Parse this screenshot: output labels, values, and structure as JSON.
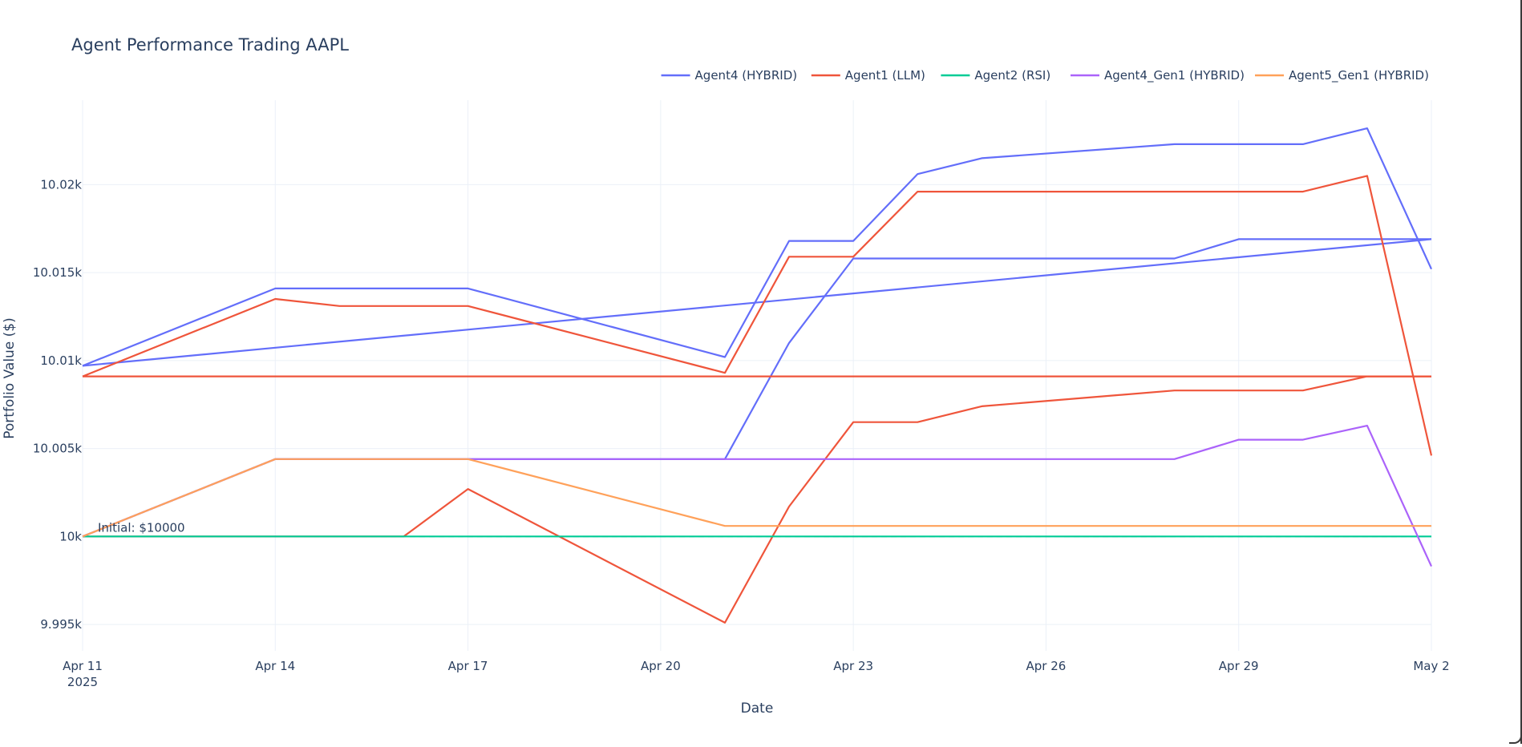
{
  "chart_data": {
    "type": "line",
    "title": "Agent Performance Trading AAPL",
    "xlabel": "Date",
    "ylabel": "Portfolio Value ($)",
    "x_range": [
      "2025-04-11",
      "2025-05-02"
    ],
    "ylim": [
      9993.5,
      10024.8
    ],
    "x_ticks": [
      {
        "date": "2025-04-11",
        "label": "Apr 11",
        "sublabel": "2025"
      },
      {
        "date": "2025-04-14",
        "label": "Apr 14",
        "sublabel": ""
      },
      {
        "date": "2025-04-17",
        "label": "Apr 17",
        "sublabel": ""
      },
      {
        "date": "2025-04-20",
        "label": "Apr 20",
        "sublabel": ""
      },
      {
        "date": "2025-04-23",
        "label": "Apr 23",
        "sublabel": ""
      },
      {
        "date": "2025-04-26",
        "label": "Apr 26",
        "sublabel": ""
      },
      {
        "date": "2025-04-29",
        "label": "Apr 29",
        "sublabel": ""
      },
      {
        "date": "2025-05-02",
        "label": "May 2",
        "sublabel": ""
      }
    ],
    "y_ticks": [
      {
        "value": 9995,
        "label": "9.995k"
      },
      {
        "value": 10000,
        "label": "10k"
      },
      {
        "value": 10005,
        "label": "10.005k"
      },
      {
        "value": 10010,
        "label": "10.01k"
      },
      {
        "value": 10015,
        "label": "10.015k"
      },
      {
        "value": 10020,
        "label": "10.02k"
      }
    ],
    "grid": true,
    "legend_position": "top-right, horizontal",
    "annotations": [
      {
        "text": "Initial: $10000",
        "x": "2025-04-11",
        "y": 10000
      }
    ],
    "reference_line": {
      "y": 10000,
      "style": "dashed",
      "color": "#888888"
    },
    "series": [
      {
        "name": "Agent4 (HYBRID)",
        "color": "#636efa",
        "legend": true,
        "points": [
          {
            "x": "2025-04-11",
            "y": 10009.7
          },
          {
            "x": "2025-04-14",
            "y": 10014.1
          },
          {
            "x": "2025-04-17",
            "y": 10014.1
          },
          {
            "x": "2025-04-21",
            "y": 10010.2
          },
          {
            "x": "2025-04-22",
            "y": 10016.8
          },
          {
            "x": "2025-04-23",
            "y": 10016.8
          },
          {
            "x": "2025-04-24",
            "y": 10020.6
          },
          {
            "x": "2025-04-25",
            "y": 10021.5
          },
          {
            "x": "2025-04-28",
            "y": 10022.3
          },
          {
            "x": "2025-04-29",
            "y": 10022.3
          },
          {
            "x": "2025-04-30",
            "y": 10022.3
          },
          {
            "x": "2025-05-01",
            "y": 10023.2
          },
          {
            "x": "2025-05-02",
            "y": 10015.2
          }
        ]
      },
      {
        "name": "Agent4 (HYBRID)",
        "color": "#636efa",
        "legend": false,
        "points": [
          {
            "x": "2025-04-11",
            "y": 10009.7
          },
          {
            "x": "2025-05-02",
            "y": 10016.9
          }
        ]
      },
      {
        "name": "Agent4 (HYBRID)",
        "color": "#636efa",
        "legend": false,
        "points": [
          {
            "x": "2025-04-11",
            "y": 10000.0
          },
          {
            "x": "2025-04-14",
            "y": 10004.4
          },
          {
            "x": "2025-04-17",
            "y": 10004.4
          },
          {
            "x": "2025-04-21",
            "y": 10004.4
          },
          {
            "x": "2025-04-22",
            "y": 10011.0
          },
          {
            "x": "2025-04-23",
            "y": 10015.8
          },
          {
            "x": "2025-04-24",
            "y": 10015.8
          },
          {
            "x": "2025-04-28",
            "y": 10015.8
          },
          {
            "x": "2025-04-29",
            "y": 10016.9
          },
          {
            "x": "2025-05-01",
            "y": 10016.9
          },
          {
            "x": "2025-05-02",
            "y": 10016.9
          }
        ]
      },
      {
        "name": "Agent1 (LLM)",
        "color": "#ef553b",
        "legend": true,
        "points": [
          {
            "x": "2025-04-11",
            "y": 10009.1
          },
          {
            "x": "2025-04-14",
            "y": 10013.5
          },
          {
            "x": "2025-04-15",
            "y": 10013.1
          },
          {
            "x": "2025-04-17",
            "y": 10013.1
          },
          {
            "x": "2025-04-21",
            "y": 10009.3
          },
          {
            "x": "2025-04-22",
            "y": 10015.9
          },
          {
            "x": "2025-04-23",
            "y": 10015.9
          },
          {
            "x": "2025-04-24",
            "y": 10019.6
          },
          {
            "x": "2025-04-28",
            "y": 10019.6
          },
          {
            "x": "2025-04-29",
            "y": 10019.6
          },
          {
            "x": "2025-04-30",
            "y": 10019.6
          },
          {
            "x": "2025-05-01",
            "y": 10020.5
          },
          {
            "x": "2025-05-02",
            "y": 10004.6
          }
        ]
      },
      {
        "name": "Agent1 (LLM)",
        "color": "#ef553b",
        "legend": false,
        "points": [
          {
            "x": "2025-04-11",
            "y": 10009.1
          },
          {
            "x": "2025-05-02",
            "y": 10009.1
          }
        ]
      },
      {
        "name": "Agent1 (LLM)",
        "color": "#ef553b",
        "legend": false,
        "points": [
          {
            "x": "2025-04-11",
            "y": 10000.0
          },
          {
            "x": "2025-04-16",
            "y": 10000.0
          },
          {
            "x": "2025-04-17",
            "y": 10002.7
          },
          {
            "x": "2025-04-21",
            "y": 9995.1
          },
          {
            "x": "2025-04-22",
            "y": 10001.7
          },
          {
            "x": "2025-04-23",
            "y": 10006.5
          },
          {
            "x": "2025-04-24",
            "y": 10006.5
          },
          {
            "x": "2025-04-25",
            "y": 10007.4
          },
          {
            "x": "2025-04-28",
            "y": 10008.3
          },
          {
            "x": "2025-04-29",
            "y": 10008.3
          },
          {
            "x": "2025-04-30",
            "y": 10008.3
          },
          {
            "x": "2025-05-01",
            "y": 10009.1
          },
          {
            "x": "2025-05-02",
            "y": 10009.1
          }
        ]
      },
      {
        "name": "Agent2 (RSI)",
        "color": "#00cc96",
        "legend": true,
        "points": [
          {
            "x": "2025-04-11",
            "y": 10000.0
          },
          {
            "x": "2025-05-02",
            "y": 10000.0
          }
        ]
      },
      {
        "name": "Agent4_Gen1 (HYBRID)",
        "color": "#ab63fa",
        "legend": true,
        "points": [
          {
            "x": "2025-04-11",
            "y": 10000.0
          },
          {
            "x": "2025-04-14",
            "y": 10004.4
          },
          {
            "x": "2025-04-17",
            "y": 10004.4
          },
          {
            "x": "2025-04-21",
            "y": 10004.4
          },
          {
            "x": "2025-04-28",
            "y": 10004.4
          },
          {
            "x": "2025-04-29",
            "y": 10005.5
          },
          {
            "x": "2025-04-30",
            "y": 10005.5
          },
          {
            "x": "2025-05-01",
            "y": 10006.3
          },
          {
            "x": "2025-05-02",
            "y": 9998.3
          }
        ]
      },
      {
        "name": "Agent5_Gen1 (HYBRID)",
        "color": "#ffa15a",
        "legend": true,
        "points": [
          {
            "x": "2025-04-11",
            "y": 10000.0
          },
          {
            "x": "2025-04-14",
            "y": 10004.4
          },
          {
            "x": "2025-04-17",
            "y": 10004.4
          },
          {
            "x": "2025-04-21",
            "y": 10000.6
          },
          {
            "x": "2025-05-02",
            "y": 10000.6
          }
        ]
      }
    ]
  }
}
